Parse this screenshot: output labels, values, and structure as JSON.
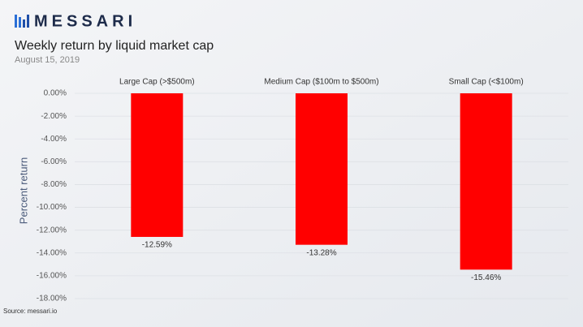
{
  "brand": "MESSARI",
  "source": "Source: messari.io",
  "chart_data": {
    "type": "bar",
    "title": "Weekly return by liquid market cap",
    "subtitle": "August 15, 2019",
    "y_label": "Percent return",
    "categories": [
      "Large Cap (>$500m)",
      "Medium Cap ($100m to $500m)",
      "Small Cap (<$100m)"
    ],
    "values": [
      -12.59,
      -13.28,
      -15.46
    ],
    "value_labels": [
      "-12.59%",
      "-13.28%",
      "-15.46%"
    ],
    "color": "#ff0000",
    "ylim": [
      -18,
      0
    ],
    "yticks": [
      {
        "value": 0,
        "label": "0.00%"
      },
      {
        "value": -2,
        "label": "-2.00%"
      },
      {
        "value": -4,
        "label": "-4.00%"
      },
      {
        "value": -6,
        "label": "-6.00%"
      },
      {
        "value": -8,
        "label": "-8.00%"
      },
      {
        "value": -10,
        "label": "-10.00%"
      },
      {
        "value": -12,
        "label": "-12.00%"
      },
      {
        "value": -14,
        "label": "-14.00%"
      },
      {
        "value": -16,
        "label": "-16.00%"
      },
      {
        "value": -18,
        "label": "-18.00%"
      }
    ],
    "grid": true
  }
}
